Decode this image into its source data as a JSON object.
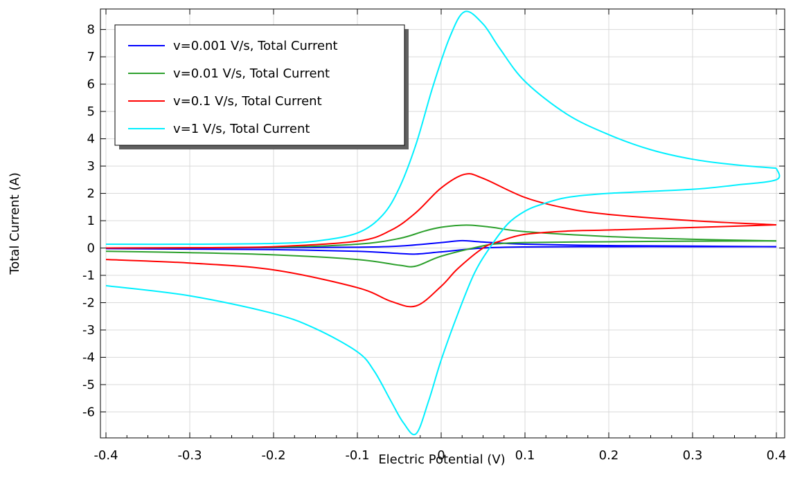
{
  "chart_data": {
    "type": "line",
    "xlabel": "Electric Potential (V)",
    "ylabel": "Total Current (A)",
    "xlim": [
      -0.4,
      0.4
    ],
    "ylim": [
      -6.95,
      8.75
    ],
    "x_ticks": [
      -0.4,
      -0.3,
      -0.2,
      -0.1,
      0,
      0.1,
      0.2,
      0.3,
      0.4
    ],
    "x_tick_labels": [
      "-0.4",
      "-0.3",
      "-0.2",
      "-0.1",
      "0",
      "0.1",
      "0.2",
      "0.3",
      "0.4"
    ],
    "y_ticks": [
      -6,
      -5,
      -4,
      -3,
      -2,
      -1,
      0,
      1,
      2,
      3,
      4,
      5,
      6,
      7,
      8
    ],
    "y_tick_labels": [
      "-6",
      "-5",
      "-4",
      "-3",
      "-2",
      "-1",
      "0",
      "1",
      "2",
      "3",
      "4",
      "5",
      "6",
      "7",
      "8"
    ],
    "grid": true,
    "legend_position": "top-left",
    "series": [
      {
        "name": "v=0.001 V/s, Total Current",
        "color": "#0000ff",
        "forward": [
          [
            -0.4,
            0.0
          ],
          [
            -0.2,
            0.01
          ],
          [
            -0.1,
            0.03
          ],
          [
            -0.05,
            0.07
          ],
          [
            0,
            0.2
          ],
          [
            0.025,
            0.27
          ],
          [
            0.05,
            0.22
          ],
          [
            0.1,
            0.14
          ],
          [
            0.2,
            0.09
          ],
          [
            0.3,
            0.07
          ],
          [
            0.4,
            0.05
          ]
        ],
        "reverse": [
          [
            0.4,
            0.05
          ],
          [
            0.3,
            0.05
          ],
          [
            0.2,
            0.05
          ],
          [
            0.1,
            0.04
          ],
          [
            0.05,
            0.0
          ],
          [
            0.0,
            -0.14
          ],
          [
            -0.03,
            -0.22
          ],
          [
            -0.05,
            -0.2
          ],
          [
            -0.1,
            -0.12
          ],
          [
            -0.2,
            -0.06
          ],
          [
            -0.3,
            -0.04
          ],
          [
            -0.4,
            -0.02
          ]
        ]
      },
      {
        "name": "v=0.01 V/s, Total Current",
        "color": "#2ca02c",
        "forward": [
          [
            -0.4,
            0.0
          ],
          [
            -0.2,
            0.03
          ],
          [
            -0.1,
            0.14
          ],
          [
            -0.05,
            0.35
          ],
          [
            -0.02,
            0.62
          ],
          [
            0,
            0.76
          ],
          [
            0.03,
            0.84
          ],
          [
            0.06,
            0.76
          ],
          [
            0.1,
            0.6
          ],
          [
            0.2,
            0.42
          ],
          [
            0.3,
            0.32
          ],
          [
            0.4,
            0.26
          ]
        ],
        "reverse": [
          [
            0.4,
            0.26
          ],
          [
            0.3,
            0.25
          ],
          [
            0.2,
            0.23
          ],
          [
            0.1,
            0.2
          ],
          [
            0.07,
            0.16
          ],
          [
            0.05,
            0.08
          ],
          [
            0.0,
            -0.3
          ],
          [
            -0.03,
            -0.66
          ],
          [
            -0.05,
            -0.63
          ],
          [
            -0.1,
            -0.42
          ],
          [
            -0.2,
            -0.25
          ],
          [
            -0.3,
            -0.17
          ],
          [
            -0.4,
            -0.12
          ]
        ]
      },
      {
        "name": "v=0.1 V/s, Total Current",
        "color": "#ff0000",
        "forward": [
          [
            -0.4,
            0.0
          ],
          [
            -0.3,
            0.01
          ],
          [
            -0.2,
            0.05
          ],
          [
            -0.1,
            0.25
          ],
          [
            -0.06,
            0.65
          ],
          [
            -0.03,
            1.3
          ],
          [
            0,
            2.2
          ],
          [
            0.028,
            2.7
          ],
          [
            0.05,
            2.55
          ],
          [
            0.1,
            1.85
          ],
          [
            0.15,
            1.45
          ],
          [
            0.2,
            1.23
          ],
          [
            0.3,
            1.0
          ],
          [
            0.4,
            0.85
          ]
        ],
        "reverse": [
          [
            0.4,
            0.85
          ],
          [
            0.3,
            0.75
          ],
          [
            0.2,
            0.66
          ],
          [
            0.15,
            0.62
          ],
          [
            0.1,
            0.5
          ],
          [
            0.07,
            0.25
          ],
          [
            0.05,
            0.0
          ],
          [
            0.02,
            -0.75
          ],
          [
            0,
            -1.4
          ],
          [
            -0.03,
            -2.12
          ],
          [
            -0.06,
            -1.95
          ],
          [
            -0.1,
            -1.45
          ],
          [
            -0.2,
            -0.8
          ],
          [
            -0.3,
            -0.55
          ],
          [
            -0.4,
            -0.42
          ]
        ]
      },
      {
        "name": "v=1 V/s, Total Current",
        "color": "#00f0ff",
        "forward": [
          [
            -0.4,
            0.14
          ],
          [
            -0.3,
            0.14
          ],
          [
            -0.2,
            0.17
          ],
          [
            -0.15,
            0.25
          ],
          [
            -0.1,
            0.55
          ],
          [
            -0.07,
            1.2
          ],
          [
            -0.05,
            2.2
          ],
          [
            -0.03,
            3.8
          ],
          [
            -0.01,
            5.9
          ],
          [
            0.01,
            7.7
          ],
          [
            0.028,
            8.65
          ],
          [
            0.05,
            8.2
          ],
          [
            0.07,
            7.3
          ],
          [
            0.1,
            6.1
          ],
          [
            0.15,
            4.9
          ],
          [
            0.2,
            4.15
          ],
          [
            0.25,
            3.6
          ],
          [
            0.3,
            3.25
          ],
          [
            0.35,
            3.05
          ],
          [
            0.4,
            2.92
          ]
        ],
        "reverse": [
          [
            0.4,
            2.92
          ],
          [
            0.4,
            2.5
          ],
          [
            0.35,
            2.3
          ],
          [
            0.3,
            2.15
          ],
          [
            0.2,
            2.0
          ],
          [
            0.15,
            1.85
          ],
          [
            0.12,
            1.6
          ],
          [
            0.1,
            1.35
          ],
          [
            0.08,
            0.9
          ],
          [
            0.06,
            0.1
          ],
          [
            0.04,
            -0.9
          ],
          [
            0.02,
            -2.4
          ],
          [
            0,
            -4.1
          ],
          [
            -0.015,
            -5.6
          ],
          [
            -0.03,
            -6.8
          ],
          [
            -0.045,
            -6.4
          ],
          [
            -0.06,
            -5.6
          ],
          [
            -0.08,
            -4.5
          ],
          [
            -0.1,
            -3.8
          ],
          [
            -0.15,
            -2.95
          ],
          [
            -0.2,
            -2.4
          ],
          [
            -0.3,
            -1.75
          ],
          [
            -0.4,
            -1.38
          ]
        ]
      }
    ]
  }
}
